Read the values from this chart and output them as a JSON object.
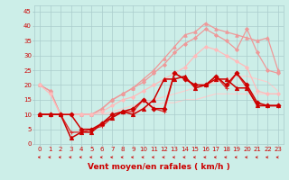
{
  "background_color": "#cceee8",
  "grid_color": "#aacccc",
  "xlabel": "Vent moyen/en rafales ( km/h )",
  "xlabel_color": "#cc0000",
  "ylabel_ticks": [
    0,
    5,
    10,
    15,
    20,
    25,
    30,
    35,
    40,
    45
  ],
  "xlim": [
    -0.5,
    23.5
  ],
  "ylim": [
    0,
    47
  ],
  "x_values": [
    0,
    1,
    2,
    3,
    4,
    5,
    6,
    7,
    8,
    9,
    10,
    11,
    12,
    13,
    14,
    15,
    16,
    17,
    18,
    19,
    20,
    21,
    22,
    23
  ],
  "series": [
    {
      "y": [
        20,
        18,
        10,
        10,
        10,
        10,
        12,
        15,
        17,
        19,
        22,
        25,
        29,
        33,
        37,
        38,
        41,
        39,
        38,
        37,
        36,
        35,
        36,
        25
      ],
      "color": "#ee9999",
      "lw": 0.9,
      "marker": "^",
      "ms": 2.5,
      "zorder": 2
    },
    {
      "y": [
        20,
        18,
        10,
        10,
        10,
        10,
        12,
        15,
        17,
        19,
        21,
        24,
        27,
        31,
        34,
        36,
        39,
        37,
        35,
        32,
        39,
        31,
        25,
        24
      ],
      "color": "#ee9999",
      "lw": 0.9,
      "marker": "D",
      "ms": 2,
      "zorder": 2
    },
    {
      "y": [
        20,
        17,
        10,
        10,
        10,
        10,
        11,
        13,
        15,
        16,
        18,
        20,
        22,
        24,
        26,
        30,
        33,
        32,
        30,
        28,
        26,
        18,
        17,
        17
      ],
      "color": "#ffbbbb",
      "lw": 0.9,
      "marker": "D",
      "ms": 2,
      "zorder": 2
    },
    {
      "y": [
        10,
        10,
        10,
        10,
        10,
        10,
        10,
        11,
        12,
        13,
        14,
        15,
        16,
        17,
        18,
        19,
        20,
        21,
        22,
        23,
        23,
        22,
        21,
        18
      ],
      "color": "#ffcccc",
      "lw": 0.8,
      "marker": null,
      "ms": 0,
      "zorder": 1
    },
    {
      "y": [
        10,
        10,
        10,
        10,
        10,
        10,
        10,
        10,
        11,
        11,
        12,
        13,
        14,
        14,
        15,
        15,
        16,
        17,
        17,
        17,
        17,
        17,
        17,
        17
      ],
      "color": "#ffcccc",
      "lw": 0.8,
      "marker": null,
      "ms": 0,
      "zorder": 1
    },
    {
      "y": [
        10,
        10,
        10,
        4,
        4,
        5,
        6,
        9,
        11,
        11,
        15,
        12,
        11,
        24,
        22,
        20,
        20,
        23,
        19,
        24,
        19,
        13,
        13,
        13
      ],
      "color": "#dd3333",
      "lw": 1.0,
      "marker": "+",
      "ms": 3.5,
      "zorder": 3
    },
    {
      "y": [
        10,
        10,
        10,
        10,
        5,
        5,
        7,
        10,
        11,
        12,
        15,
        12,
        12,
        24,
        22,
        20,
        20,
        23,
        20,
        24,
        20,
        14,
        13,
        13
      ],
      "color": "#cc0000",
      "lw": 1.1,
      "marker": "D",
      "ms": 2.5,
      "zorder": 4
    },
    {
      "y": [
        10,
        10,
        10,
        2,
        4,
        4,
        7,
        9,
        11,
        10,
        12,
        15,
        22,
        22,
        23,
        19,
        20,
        22,
        22,
        19,
        19,
        13,
        13,
        13
      ],
      "color": "#cc0000",
      "lw": 1.1,
      "marker": "^",
      "ms": 3,
      "zorder": 4
    }
  ],
  "arrow_color": "#cc0000",
  "tick_fontsize": 5.0,
  "xlabel_fontsize": 6.5
}
